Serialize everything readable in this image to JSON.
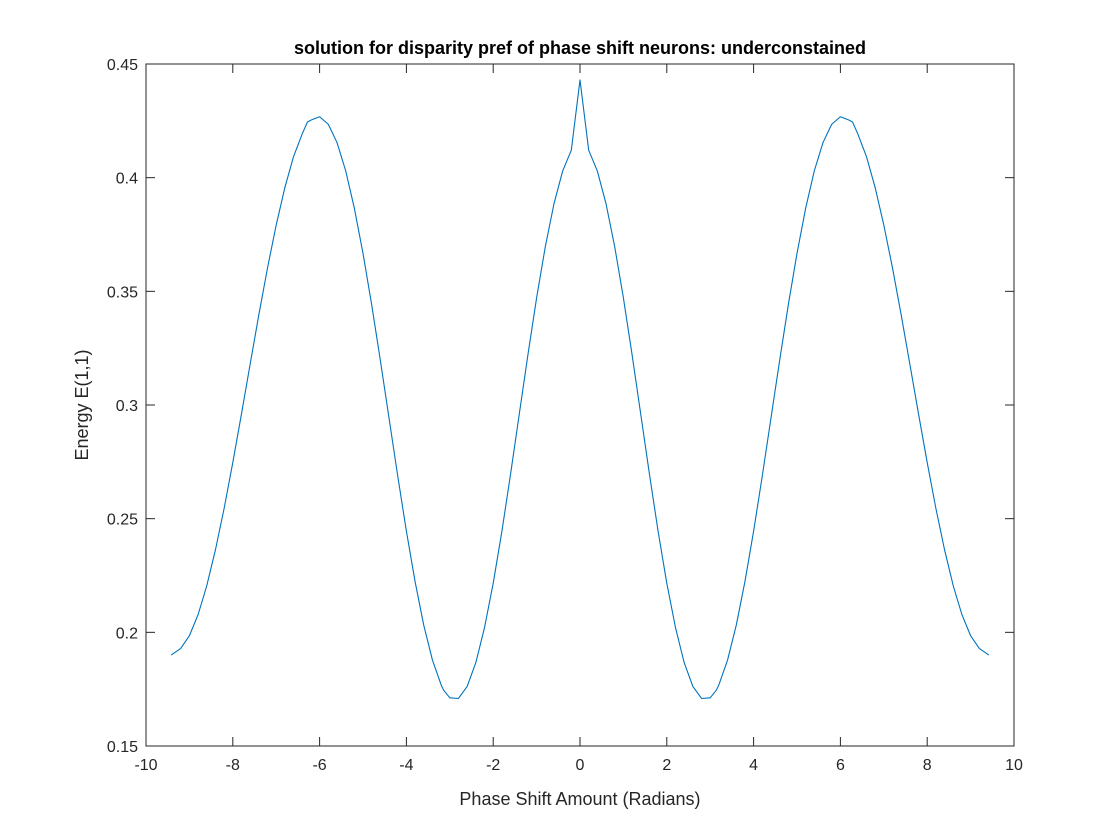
{
  "chart_data": {
    "type": "line",
    "title": "solution for disparity pref of phase shift neurons: underconstained",
    "xlabel": "Phase Shift Amount (Radians)",
    "ylabel": "Energy E(1,1)",
    "xlim": [
      -10,
      10
    ],
    "ylim": [
      0.15,
      0.45
    ],
    "xticks": [
      -10,
      -8,
      -6,
      -4,
      -2,
      0,
      2,
      4,
      6,
      8,
      10
    ],
    "xtick_labels": [
      "-10",
      "-8",
      "-6",
      "-4",
      "-2",
      "0",
      "2",
      "4",
      "6",
      "8",
      "10"
    ],
    "yticks": [
      0.15,
      0.2,
      0.25,
      0.3,
      0.35,
      0.4,
      0.45
    ],
    "ytick_labels": [
      "0.15",
      "0.2",
      "0.25",
      "0.3",
      "0.35",
      "0.4",
      "0.45"
    ],
    "grid": false,
    "box": true,
    "series": [
      {
        "color": "#0072BD",
        "x": [
          -9.42,
          -9.2,
          -9.0,
          -8.8,
          -8.6,
          -8.4,
          -8.2,
          -8.0,
          -7.8,
          -7.6,
          -7.4,
          -7.2,
          -7.0,
          -6.8,
          -6.6,
          -6.4,
          -6.28,
          -6.2,
          -6.0,
          -5.8,
          -5.6,
          -5.4,
          -5.2,
          -5.0,
          -4.8,
          -4.6,
          -4.4,
          -4.2,
          -4.0,
          -3.8,
          -3.6,
          -3.4,
          -3.2,
          -3.14,
          -3.0,
          -2.8,
          -2.6,
          -2.4,
          -2.2,
          -2.0,
          -1.8,
          -1.6,
          -1.4,
          -1.2,
          -1.0,
          -0.8,
          -0.6,
          -0.4,
          -0.2,
          0.0,
          0.2,
          0.4,
          0.6,
          0.8,
          1.0,
          1.2,
          1.4,
          1.6,
          1.8,
          2.0,
          2.2,
          2.4,
          2.6,
          2.8,
          3.0,
          3.14,
          3.2,
          3.4,
          3.6,
          3.8,
          4.0,
          4.2,
          4.4,
          4.6,
          4.8,
          5.0,
          5.2,
          5.4,
          5.6,
          5.8,
          6.0,
          6.2,
          6.28,
          6.4,
          6.6,
          6.8,
          7.0,
          7.2,
          7.4,
          7.6,
          7.8,
          8.0,
          8.2,
          8.4,
          8.6,
          8.8,
          9.0,
          9.2,
          9.42
        ],
        "y": [
          0.19,
          0.1929,
          0.1985,
          0.2078,
          0.2205,
          0.2363,
          0.2545,
          0.2747,
          0.2961,
          0.318,
          0.3397,
          0.3603,
          0.3792,
          0.3957,
          0.4093,
          0.4193,
          0.4245,
          0.4253,
          0.4268,
          0.4235,
          0.4155,
          0.4031,
          0.3866,
          0.3667,
          0.3441,
          0.3196,
          0.2942,
          0.2688,
          0.2445,
          0.2223,
          0.2031,
          0.1878,
          0.1769,
          0.1745,
          0.1712,
          0.1709,
          0.1762,
          0.1867,
          0.2021,
          0.2216,
          0.2444,
          0.2696,
          0.2959,
          0.3221,
          0.3471,
          0.3696,
          0.3885,
          0.4029,
          0.4121,
          0.443,
          0.4121,
          0.4029,
          0.3885,
          0.3696,
          0.3471,
          0.3221,
          0.2959,
          0.2696,
          0.2444,
          0.2216,
          0.2021,
          0.1867,
          0.1762,
          0.1709,
          0.1712,
          0.1745,
          0.1769,
          0.1878,
          0.2031,
          0.2223,
          0.2445,
          0.2688,
          0.2942,
          0.3196,
          0.3441,
          0.3667,
          0.3866,
          0.4031,
          0.4155,
          0.4235,
          0.4268,
          0.4253,
          0.4245,
          0.4193,
          0.4093,
          0.3957,
          0.3792,
          0.3603,
          0.3397,
          0.318,
          0.2961,
          0.2747,
          0.2545,
          0.2363,
          0.2205,
          0.2078,
          0.1985,
          0.1929,
          0.19
        ]
      }
    ]
  }
}
